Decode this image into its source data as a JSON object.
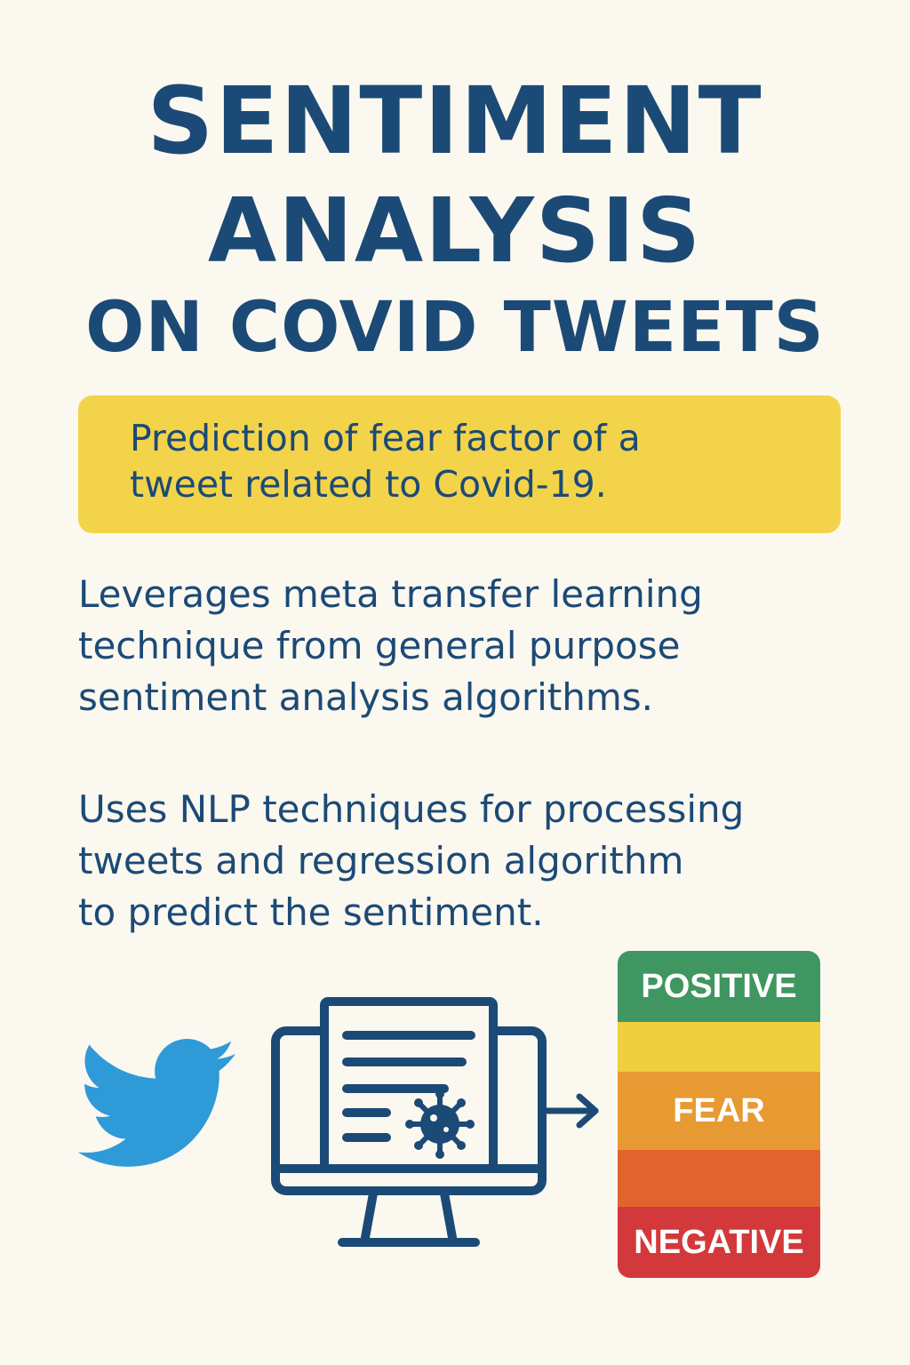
{
  "title": {
    "line1": "SENTIMENT",
    "line2": "ANALYSIS",
    "line3": "ON COVID TWEETS"
  },
  "highlight": {
    "line1": "Prediction of fear factor of a",
    "line2": "tweet related to Covid-19."
  },
  "paragraphs": {
    "first": {
      "line1": "Leverages meta transfer learning",
      "line2": "technique from general purpose",
      "line3": "sentiment analysis algorithms."
    },
    "second": {
      "line1": "Uses NLP techniques for processing",
      "line2": "tweets and regression algorithm",
      "line3": "to predict the sentiment."
    }
  },
  "icons": {
    "bird": "twitter-bird-icon",
    "monitor": "monitor-document-virus-icon",
    "arrow": "arrow-right-icon"
  },
  "sentiment_scale": {
    "labels": {
      "top": "POSITIVE",
      "middle": "FEAR",
      "bottom": "NEGATIVE"
    },
    "colors": [
      "#3f9660",
      "#f0cf3e",
      "#e79a32",
      "#e3632f",
      "#d3393a"
    ]
  },
  "colors": {
    "background": "#fbf8f0",
    "text": "#1c4a76",
    "highlight": "#f2d34a",
    "twitter_blue": "#2f9ad8"
  }
}
